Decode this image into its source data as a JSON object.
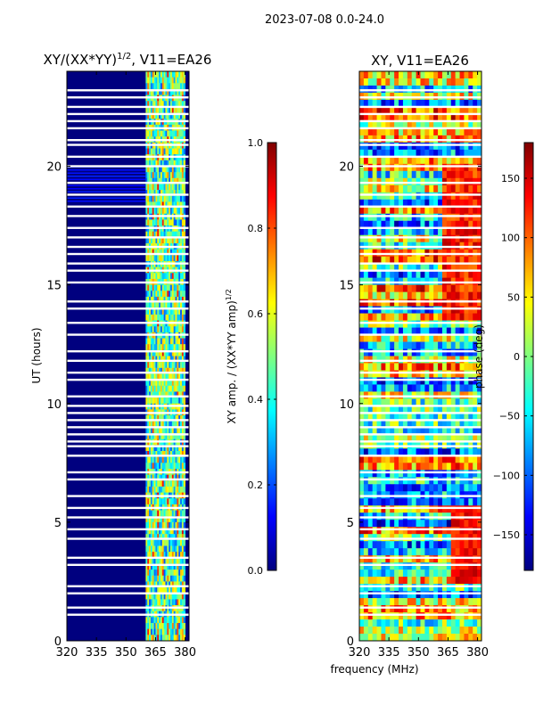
{
  "suptitle": "2023-07-08 0.0-24.0",
  "colors": {
    "jet": [
      "#00007f",
      "#0000ff",
      "#007fff",
      "#00ffff",
      "#7fff7f",
      "#ffff00",
      "#ff7f00",
      "#ff0000",
      "#7f0000"
    ],
    "gap": "#ffffff",
    "axis": "#000000"
  },
  "chart_data": [
    {
      "type": "heatmap",
      "title": "XY/(XX*YY)^1/2, V11=EA26",
      "title_main": "XY/(XX*YY)",
      "title_sup": "1/2",
      "title_tail": ", V11=EA26",
      "xlabel": "",
      "ylabel": "UT (hours)",
      "xlim": [
        320,
        382
      ],
      "ylim": [
        0,
        24
      ],
      "xticks": [
        320,
        335,
        350,
        365,
        380
      ],
      "yticks": [
        0,
        5,
        10,
        15,
        20
      ],
      "quantity": "normalized XY amplitude",
      "active_band_mhz": [
        360,
        380
      ],
      "low_band_value": 0.05,
      "high_band_value_range": [
        0.2,
        0.8
      ],
      "colorbar": {
        "label": "XY amp. / (XX*YY amp)^1/2",
        "label_main": "XY amp. / (XX*YY amp)",
        "label_sup": "1/2",
        "range": [
          0.0,
          1.0
        ],
        "ticks": [
          0.0,
          0.2,
          0.4,
          0.6,
          0.8,
          1.0
        ],
        "tick_labels": [
          "0.0",
          "0.2",
          "0.4",
          "0.6",
          "0.8",
          "1.0"
        ]
      },
      "flagged_hours": [
        1.1,
        1.4,
        2.0,
        2.3,
        3.2,
        3.5,
        4.3,
        4.7,
        5.2,
        5.6,
        6.1,
        6.8,
        7.1,
        7.8,
        8.2,
        8.4,
        8.7,
        9.0,
        9.3,
        9.6,
        9.9,
        10.3,
        11.0,
        11.3,
        11.8,
        12.2,
        12.9,
        13.4,
        14.0,
        14.3,
        15.1,
        15.6,
        15.9,
        16.3,
        16.6,
        17.0,
        17.4,
        17.9,
        18.3,
        18.8,
        19.3,
        20.0,
        20.4,
        20.9,
        21.1,
        21.6,
        21.9,
        22.2,
        22.5,
        22.9,
        23.2
      ]
    },
    {
      "type": "heatmap",
      "title": "XY, V11=EA26",
      "xlabel": "frequency (MHz)",
      "ylabel": "",
      "xlim": [
        320,
        382
      ],
      "ylim": [
        0,
        24
      ],
      "xticks": [
        320,
        335,
        350,
        365,
        380
      ],
      "yticks": [
        0,
        5,
        10,
        15,
        20
      ],
      "quantity": "XY phase",
      "colorbar": {
        "label": "phase (deg)",
        "range": [
          -180,
          180
        ],
        "ticks": [
          -150,
          -100,
          -50,
          0,
          50,
          100,
          150
        ],
        "tick_labels": [
          "−150",
          "−100",
          "−50",
          "0",
          "50",
          "100",
          "150"
        ]
      },
      "flagged_hours": [
        1.1,
        1.4,
        2.0,
        2.3,
        3.2,
        3.5,
        4.3,
        4.7,
        5.2,
        5.6,
        6.1,
        6.8,
        7.1,
        7.8,
        8.2,
        8.4,
        8.7,
        9.0,
        9.3,
        9.6,
        9.9,
        10.3,
        11.0,
        11.3,
        11.8,
        12.2,
        12.9,
        13.4,
        14.0,
        14.3,
        15.1,
        15.6,
        15.9,
        16.3,
        16.6,
        17.0,
        17.4,
        17.9,
        18.3,
        18.8,
        19.3,
        20.0,
        20.4,
        20.9,
        21.1,
        21.6,
        21.9,
        22.2,
        22.5,
        22.9,
        23.2
      ]
    }
  ]
}
